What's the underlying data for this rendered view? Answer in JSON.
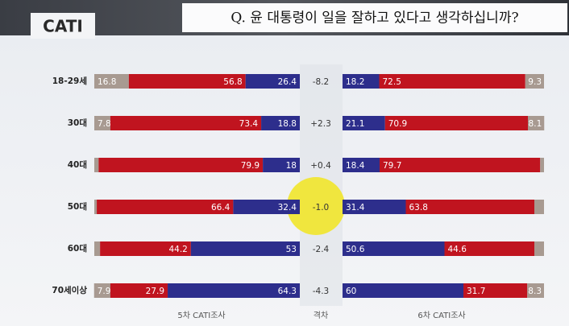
{
  "logo": "CATI",
  "chart_data": {
    "type": "diverging-stacked-bar",
    "title": "Q. 윤 대통령이 일을 잘하고 있다고 생각하십니까?",
    "categories": [
      "18-29세",
      "30대",
      "40대",
      "50대",
      "60대",
      "70세이상"
    ],
    "xlim": [
      0,
      100
    ],
    "left": {
      "label": "5차 CATI조사",
      "series": [
        {
          "color": "#a89a91",
          "values": [
            16.8,
            7.8,
            2.1,
            1.2,
            2.8,
            7.9
          ]
        },
        {
          "color": "#c0141f",
          "values": [
            56.8,
            73.4,
            79.9,
            66.4,
            44.2,
            27.9
          ]
        },
        {
          "color": "#2d2e8c",
          "values": [
            26.4,
            18.8,
            18.0,
            32.4,
            53.0,
            64.3
          ]
        }
      ]
    },
    "diff": {
      "label": "격차",
      "values": [
        -8.2,
        2.3,
        0.4,
        -1.0,
        -2.4,
        -4.3
      ],
      "value_labels": [
        "-8.2",
        "+2.3",
        "+0.4",
        "-1.0",
        "-2.4",
        "-4.3"
      ]
    },
    "right": {
      "label": "6차 CATI조사",
      "series": [
        {
          "color": "#2d2e8c",
          "values": [
            18.2,
            21.1,
            18.4,
            31.4,
            50.6,
            60.0
          ]
        },
        {
          "color": "#c0141f",
          "values": [
            72.5,
            70.9,
            79.7,
            63.8,
            44.6,
            31.7
          ]
        },
        {
          "color": "#a89a91",
          "values": [
            9.3,
            8.1,
            1.9,
            4.8,
            4.8,
            8.3
          ]
        }
      ]
    }
  }
}
